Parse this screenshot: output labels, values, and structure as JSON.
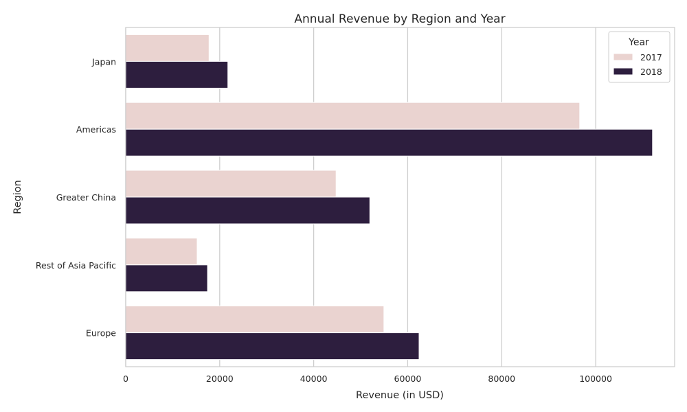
{
  "chart_data": {
    "type": "bar",
    "orientation": "horizontal",
    "title": "Annual Revenue by Region and Year",
    "xlabel": "Revenue (in USD)",
    "ylabel": "Region",
    "categories": [
      "Japan",
      "Americas",
      "Greater China",
      "Rest of Asia Pacific",
      "Europe"
    ],
    "series": [
      {
        "name": "2017",
        "values": [
          17733,
          96600,
          44764,
          15199,
          54938
        ],
        "color": "#ead3d0"
      },
      {
        "name": "2018",
        "values": [
          21733,
          112093,
          51942,
          17407,
          62420
        ],
        "color": "#2d1e3e"
      }
    ],
    "xlim": [
      0,
      116800
    ],
    "xticks": [
      0,
      20000,
      40000,
      60000,
      80000,
      100000
    ],
    "grid": true,
    "legend": {
      "title": "Year",
      "placement": "top-right"
    }
  }
}
